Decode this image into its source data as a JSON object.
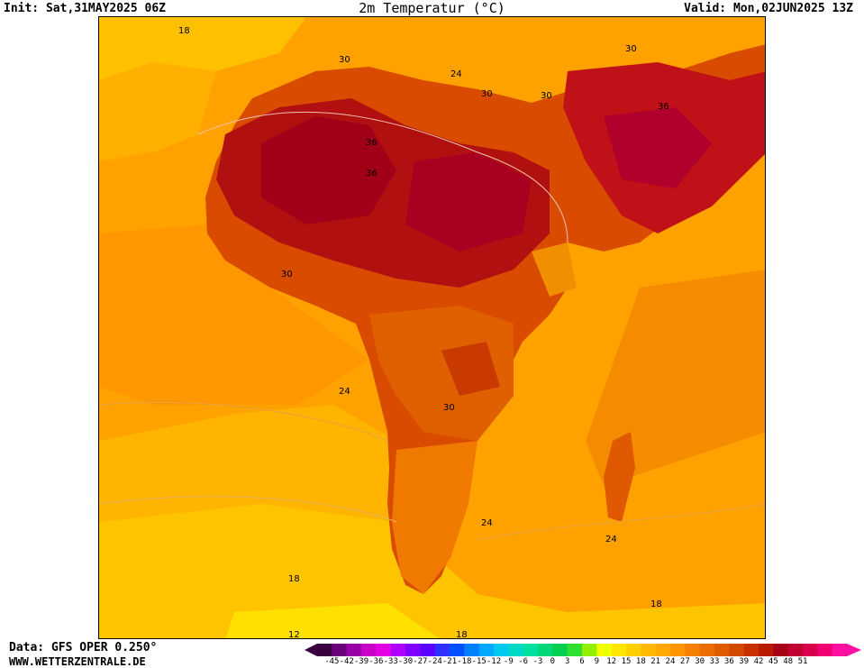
{
  "header": {
    "init": "Init: Sat,31MAY2025 06Z",
    "title": "2m Temperatur (°C)",
    "valid": "Valid: Mon,02JUN2025 13Z"
  },
  "footer": {
    "data_source": "Data: GFS OPER 0.250°",
    "site": "WWW.WETTERZENTRALE.DE"
  },
  "map": {
    "region": "Africa",
    "variable": "2m temperature",
    "isotherm_labels": [
      {
        "id": "iso-18-nw",
        "text": "18"
      },
      {
        "id": "iso-30-sahara-n",
        "text": "30"
      },
      {
        "id": "iso-24-libya",
        "text": "24"
      },
      {
        "id": "iso-30-egypt",
        "text": "30"
      },
      {
        "id": "iso-30-redsea",
        "text": "30"
      },
      {
        "id": "iso-30-arabia",
        "text": "30"
      },
      {
        "id": "iso-36-arabia",
        "text": "36"
      },
      {
        "id": "iso-36-sahel",
        "text": "36"
      },
      {
        "id": "iso-36-mali",
        "text": "36"
      },
      {
        "id": "iso-30-guinea",
        "text": "30"
      },
      {
        "id": "iso-24-atlantic",
        "text": "24"
      },
      {
        "id": "iso-30-congo",
        "text": "30"
      },
      {
        "id": "iso-24-sa",
        "text": "24"
      },
      {
        "id": "iso-24-indian",
        "text": "24"
      },
      {
        "id": "iso-18-atl-s",
        "text": "18"
      },
      {
        "id": "iso-18-ind-s",
        "text": "18"
      },
      {
        "id": "iso-12-south",
        "text": "12"
      },
      {
        "id": "iso-18-south",
        "text": "18"
      }
    ]
  },
  "legend": {
    "colors": [
      "#3b0040",
      "#6a007a",
      "#9a00a8",
      "#c800c8",
      "#e600e6",
      "#b000ff",
      "#8000ff",
      "#5a00ff",
      "#3030ff",
      "#0050ff",
      "#0080ff",
      "#00a8ff",
      "#00c8f0",
      "#00d8c8",
      "#00e0a0",
      "#00d878",
      "#00d050",
      "#30e030",
      "#90f000",
      "#f0ff00",
      "#ffe600",
      "#ffd000",
      "#ffba00",
      "#ffa800",
      "#ff9400",
      "#f58000",
      "#eb6c00",
      "#e05a00",
      "#d44800",
      "#c83000",
      "#b81c00",
      "#a80014",
      "#c00030",
      "#d8004c",
      "#f00070",
      "#ff10a0"
    ],
    "labels": [
      "-45",
      "-42",
      "-39",
      "-36",
      "-33",
      "-30",
      "-27",
      "-24",
      "-21",
      "-18",
      "-15",
      "-12",
      "-9",
      "-6",
      "-3",
      "0",
      "3",
      "6",
      "9",
      "12",
      "15",
      "18",
      "21",
      "24",
      "27",
      "30",
      "33",
      "36",
      "39",
      "42",
      "45",
      "48",
      "51"
    ]
  }
}
